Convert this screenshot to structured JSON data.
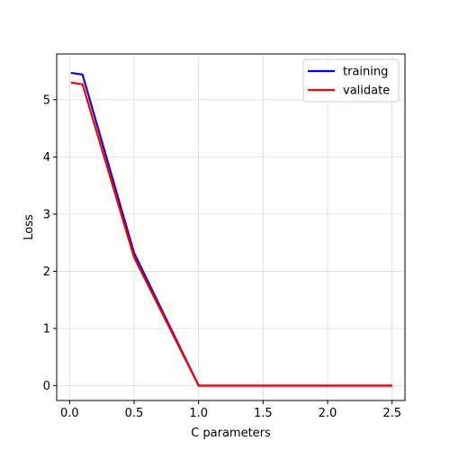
{
  "chart_data": {
    "type": "line",
    "title": "",
    "xlabel": "C parameters",
    "ylabel": "Loss",
    "xlim": [
      -0.1,
      2.6
    ],
    "ylim": [
      -0.26,
      5.8
    ],
    "xticks": [
      "0.0",
      "0.5",
      "1.0",
      "1.5",
      "2.0",
      "2.5"
    ],
    "yticks": [
      "0",
      "1",
      "2",
      "3",
      "4",
      "5"
    ],
    "grid": true,
    "legend_position": "top-right",
    "x": [
      0.01,
      0.1,
      0.5,
      1.0,
      1.5,
      2.0,
      2.5
    ],
    "series": [
      {
        "name": "training",
        "color": "#0000ff",
        "values": [
          5.47,
          5.44,
          2.32,
          0.0,
          0.0,
          0.0,
          0.0
        ]
      },
      {
        "name": "validate",
        "color": "#ff0000",
        "values": [
          5.3,
          5.27,
          2.24,
          0.0,
          0.0,
          0.0,
          0.0
        ]
      }
    ]
  }
}
